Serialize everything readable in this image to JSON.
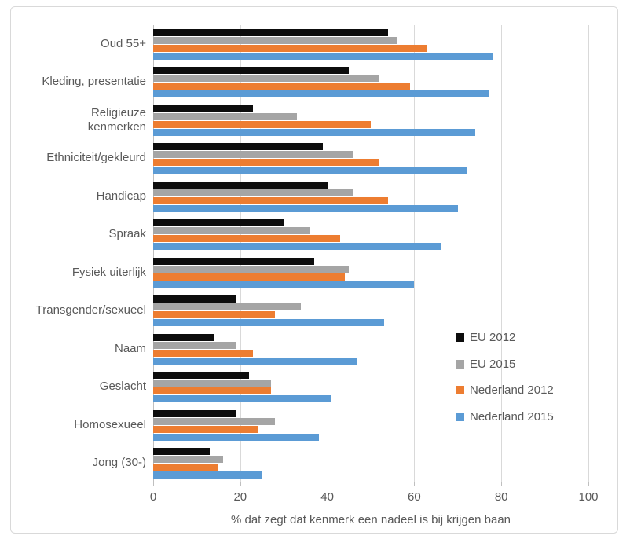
{
  "chart_data": {
    "type": "bar",
    "orientation": "horizontal",
    "title": "",
    "xlabel": "% dat zegt dat kenmerk een nadeel is bij krijgen baan",
    "ylabel": "",
    "x_ticks": [
      0,
      20,
      40,
      60,
      80,
      100
    ],
    "xlim": [
      0,
      100
    ],
    "grid": true,
    "legend_position": "right-middle",
    "categories": [
      "Oud 55+",
      "Kleding, presentatie",
      "Religieuze\nkenmerken",
      "Ethniciteit/gekleurd",
      "Handicap",
      "Spraak",
      "Fysiek uiterlijk",
      "Transgender/sexueel",
      "Naam",
      "Geslacht",
      "Homosexueel",
      "Jong (30-)"
    ],
    "series": [
      {
        "name": "EU 2012",
        "color": "#0D0D0D",
        "values": [
          54,
          45,
          23,
          39,
          40,
          30,
          37,
          19,
          14,
          22,
          19,
          13
        ]
      },
      {
        "name": "EU 2015",
        "color": "#A5A5A5",
        "values": [
          56,
          52,
          33,
          46,
          46,
          36,
          45,
          34,
          19,
          27,
          28,
          16
        ]
      },
      {
        "name": "Nederland 2012",
        "color": "#ED7D31",
        "values": [
          63,
          59,
          50,
          52,
          54,
          43,
          44,
          28,
          23,
          27,
          24,
          15
        ]
      },
      {
        "name": "Nederland 2015",
        "color": "#5B9BD5",
        "values": [
          78,
          77,
          74,
          72,
          70,
          66,
          60,
          53,
          47,
          41,
          38,
          25
        ]
      }
    ]
  },
  "style": {
    "gridline_color": "#D9D9D9",
    "axis_line_color": "#BFBFBF",
    "text_color": "#595959",
    "border_color": "#D9D9D9",
    "background": "#FFFFFF"
  }
}
